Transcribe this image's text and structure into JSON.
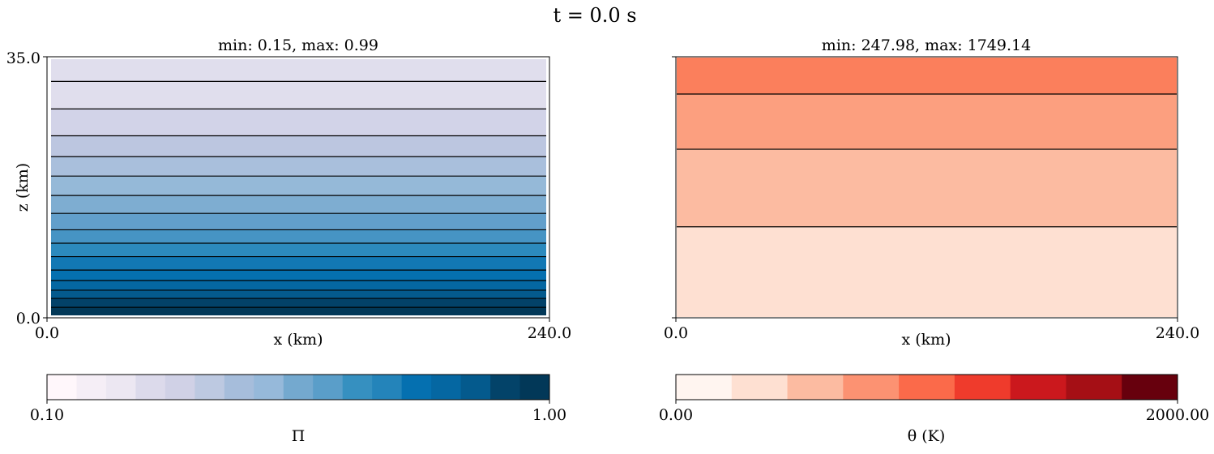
{
  "suptitle": "t = 0.0 s",
  "chart_data": [
    {
      "type": "heatmap",
      "title": "min: 0.15, max: 0.99",
      "xlabel": "x (km)",
      "ylabel": "z (km)",
      "xlim": [
        0.0,
        240.0
      ],
      "ylim": [
        0.0,
        35.0
      ],
      "x_ticks": [
        "0.0",
        "240.0"
      ],
      "y_ticks": [
        "0.0",
        "35.0"
      ],
      "field": "horizontally uniform, decreasing with height",
      "contour_z_km": [
        1.4,
        2.6,
        3.7,
        5.0,
        6.4,
        8.2,
        10.0,
        11.8,
        14.0,
        16.4,
        19.0,
        21.6,
        24.4,
        28.0,
        31.7
      ],
      "band_colors": [
        "#023858",
        "#034269",
        "#045a8d",
        "#0567a2",
        "#0570b0",
        "#1278b4",
        "#2c8abd",
        "#4694c4",
        "#629fcb",
        "#7eadd1",
        "#95b9d8",
        "#a9bfdc",
        "#bcc6e0",
        "#d2d3e8",
        "#e0deed"
      ],
      "colorbar": {
        "label": "Π",
        "min_label": "0.10",
        "max_label": "1.00",
        "range": [
          0.1,
          1.0
        ],
        "colors": [
          "#fff7fb",
          "#f5eef6",
          "#ece7f2",
          "#dcdaeb",
          "#d0d1e6",
          "#bdc9e1",
          "#a6bddb",
          "#96b9da",
          "#74a9cf",
          "#5a9ec9",
          "#3690c0",
          "#2484ba",
          "#0570b0",
          "#0567a2",
          "#045a8d",
          "#034369",
          "#023858"
        ]
      }
    },
    {
      "type": "heatmap",
      "title": "min: 247.98, max: 1749.14",
      "xlabel": "x (km)",
      "ylabel": "",
      "xlim": [
        0.0,
        240.0
      ],
      "ylim": [
        0.0,
        35.0
      ],
      "x_ticks": [
        "0.0",
        "240.0"
      ],
      "y_ticks": [],
      "field": "horizontally uniform, increasing with height",
      "contour_z_km": [
        12.2,
        22.6,
        30.0
      ],
      "band_colors": [
        "#fee0d2",
        "#fcbba1",
        "#fc9f7f",
        "#fb7f5c"
      ],
      "colorbar": {
        "label": "θ (K)",
        "min_label": "0.00",
        "max_label": "2000.00",
        "range": [
          0.0,
          2000.0
        ],
        "colors": [
          "#fff5f0",
          "#fee0d2",
          "#fcbba1",
          "#fc9272",
          "#fb6a4a",
          "#ef3b2c",
          "#cb181d",
          "#a50f15",
          "#67000d"
        ]
      }
    }
  ]
}
